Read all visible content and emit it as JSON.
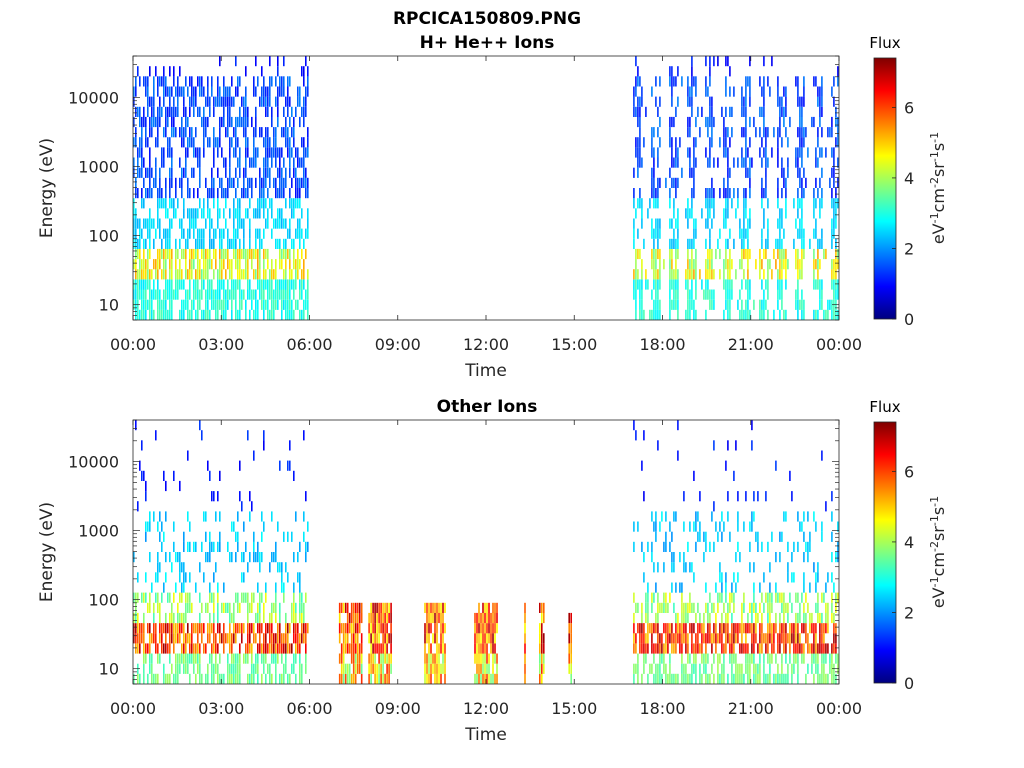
{
  "figure_title": "RPCICA150809.PNG",
  "chart_data": [
    {
      "type": "heatmap",
      "title": "H+ He++ Ions",
      "xlabel": "Time",
      "ylabel": "Energy (eV)",
      "x_ticks": [
        "00:00",
        "03:00",
        "06:00",
        "09:00",
        "12:00",
        "15:00",
        "18:00",
        "21:00",
        "00:00"
      ],
      "xlim_hours": [
        0,
        24
      ],
      "y_scale": "log",
      "ylim": [
        6,
        40000
      ],
      "y_ticks": [
        {
          "value": 10,
          "label": "10"
        },
        {
          "value": 100,
          "label": "100"
        },
        {
          "value": 1000,
          "label": "1000"
        },
        {
          "value": 10000,
          "label": "10000"
        }
      ],
      "colorbar": {
        "title": "Flux",
        "label": "eV-1cm-2sr-1s-1",
        "range": [
          0,
          7.4
        ],
        "ticks": [
          "0",
          "2",
          "4",
          "6"
        ],
        "colormap": "jet"
      },
      "segments": [
        {
          "start_h": 0.0,
          "end_h": 5.95,
          "profile": "hot"
        },
        {
          "start_h": 17.0,
          "end_h": 24.0,
          "profile": "hot"
        }
      ]
    },
    {
      "type": "heatmap",
      "title": "Other Ions",
      "xlabel": "Time",
      "ylabel": "Energy (eV)",
      "x_ticks": [
        "00:00",
        "03:00",
        "06:00",
        "09:00",
        "12:00",
        "15:00",
        "18:00",
        "21:00",
        "00:00"
      ],
      "xlim_hours": [
        0,
        24
      ],
      "y_scale": "log",
      "ylim": [
        6,
        40000
      ],
      "y_ticks": [
        {
          "value": 10,
          "label": "10"
        },
        {
          "value": 100,
          "label": "100"
        },
        {
          "value": 1000,
          "label": "1000"
        },
        {
          "value": 10000,
          "label": "10000"
        }
      ],
      "colorbar": {
        "title": "Flux",
        "label": "eV-1cm-2sr-1s-1",
        "range": [
          0,
          7.4
        ],
        "ticks": [
          "0",
          "2",
          "4",
          "6"
        ],
        "colormap": "jet"
      },
      "segments": [
        {
          "start_h": 0.0,
          "end_h": 5.95,
          "profile": "heavy"
        },
        {
          "start_h": 7.0,
          "end_h": 7.8,
          "profile": "burst"
        },
        {
          "start_h": 8.0,
          "end_h": 8.75,
          "profile": "burst"
        },
        {
          "start_h": 9.9,
          "end_h": 10.6,
          "profile": "burst"
        },
        {
          "start_h": 11.6,
          "end_h": 12.4,
          "profile": "burst"
        },
        {
          "start_h": 13.3,
          "end_h": 13.35,
          "profile": "burst"
        },
        {
          "start_h": 13.8,
          "end_h": 14.0,
          "profile": "burst"
        },
        {
          "start_h": 14.8,
          "end_h": 14.9,
          "profile": "burst"
        },
        {
          "start_h": 17.0,
          "end_h": 24.0,
          "profile": "heavy"
        }
      ]
    }
  ]
}
